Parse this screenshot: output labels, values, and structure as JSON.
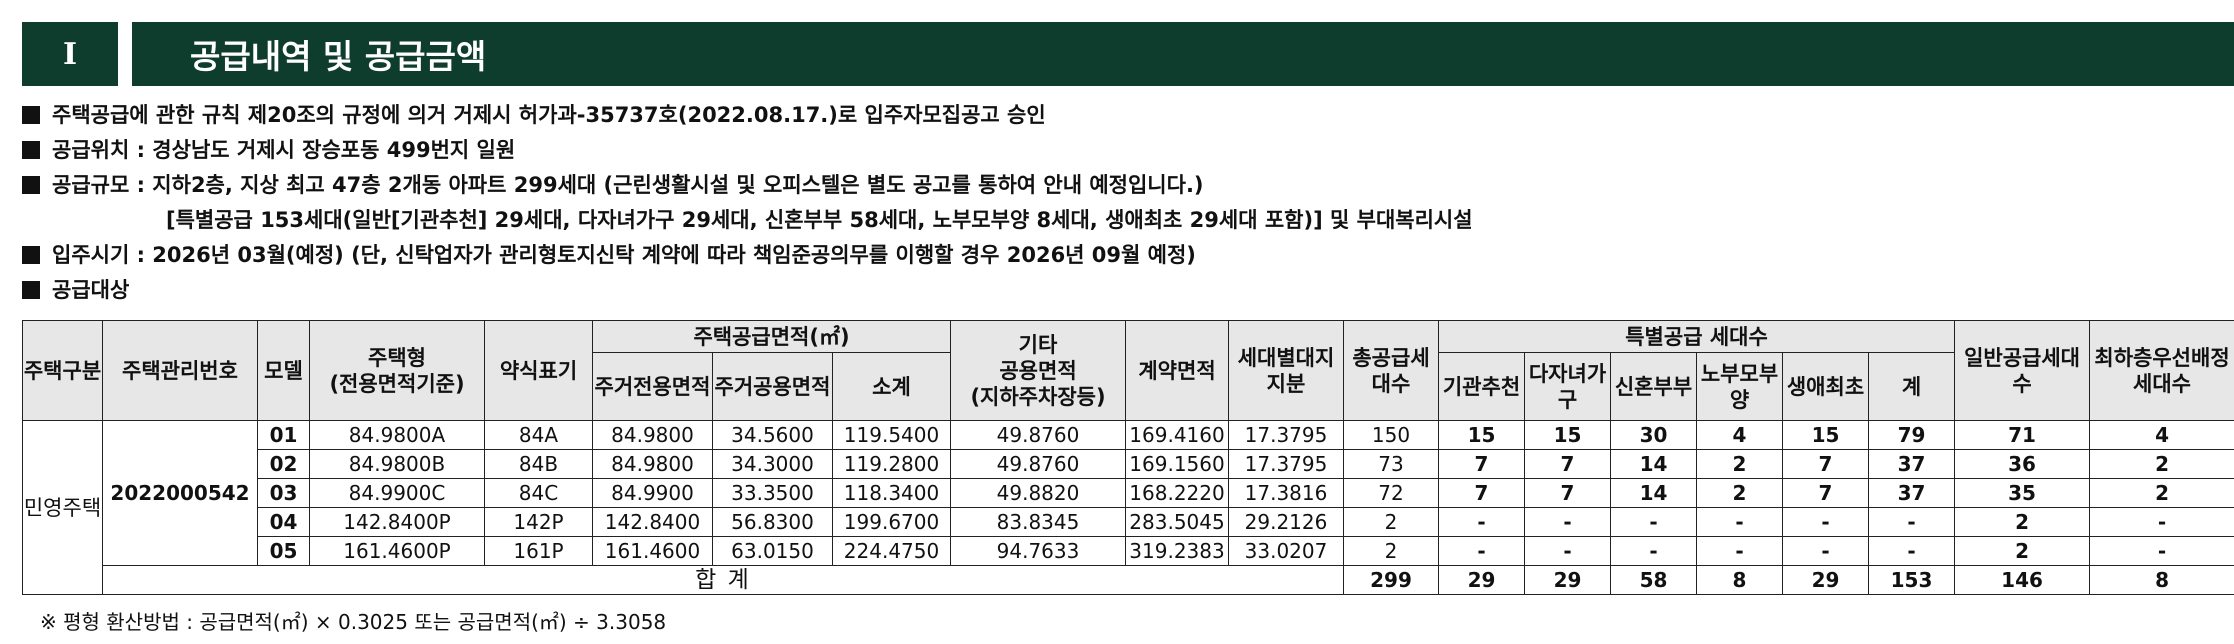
{
  "header": {
    "number": "I",
    "title": "공급내역 및 공급금액"
  },
  "bullets": [
    "주택공급에 관한 규칙 제20조의 규정에 의거 거제시 허가과-35737호(2022.08.17.)로 입주자모집공고 승인",
    "공급위치 : 경상남도 거제시 장승포동 499번지 일원",
    "공급규모 : 지하2층, 지상 최고 47층 2개동 아파트 299세대 (근린생활시설 및 오피스텔은 별도 공고를 통하여 안내 예정입니다.)",
    "[특별공급 153세대(일반[기관추천] 29세대, 다자녀가구 29세대, 신혼부부 58세대, 노부모부양 8세대, 생애최초 29세대 포함)] 및 부대복리시설",
    "입주시기 : 2026년 03월(예정) (단, 신탁업자가 관리형토지신탁 계약에 따라 책임준공의무를 이행할 경우 2026년 09월 예정)",
    "공급대상"
  ],
  "table": {
    "h": {
      "house_type_gubun": "주택구분",
      "mgmt_no": "주택관리번호",
      "model": "모델",
      "house_type": "주택형",
      "house_type_sub": "(전용면적기준)",
      "short": "약식표기",
      "supply_area": "주택공급면적(㎡)",
      "excl_area": "주거전용면적",
      "shared_area": "주거공용면적",
      "subtotal": "소계",
      "other_area": "기타",
      "other_area_2": "공용면적",
      "other_area_sub": "(지하주차장등)",
      "contract_area": "계약면적",
      "land_share": "세대별대지지분",
      "total_units": "총공급세대수",
      "special": "특별공급 세대수",
      "sp_inst": "기관추천",
      "sp_multi": "다자녀가구",
      "sp_newly": "신혼부부",
      "sp_parent": "노부모부양",
      "sp_first": "생애최초",
      "sp_total": "계",
      "general": "일반공급세대수",
      "lowest": "최하층우선배정세대수"
    },
    "house_gubun": "민영주택",
    "mgmt_no": "2022000542",
    "rows": [
      [
        "01",
        "84.9800A",
        "84A",
        "84.9800",
        "34.5600",
        "119.5400",
        "49.8760",
        "169.4160",
        "17.3795",
        "150",
        "15",
        "15",
        "30",
        "4",
        "15",
        "79",
        "71",
        "4"
      ],
      [
        "02",
        "84.9800B",
        "84B",
        "84.9800",
        "34.3000",
        "119.2800",
        "49.8760",
        "169.1560",
        "17.3795",
        "73",
        "7",
        "7",
        "14",
        "2",
        "7",
        "37",
        "36",
        "2"
      ],
      [
        "03",
        "84.9900C",
        "84C",
        "84.9900",
        "33.3500",
        "118.3400",
        "49.8820",
        "168.2220",
        "17.3816",
        "72",
        "7",
        "7",
        "14",
        "2",
        "7",
        "37",
        "35",
        "2"
      ],
      [
        "04",
        "142.8400P",
        "142P",
        "142.8400",
        "56.8300",
        "199.6700",
        "83.8345",
        "283.5045",
        "29.2126",
        "2",
        "-",
        "-",
        "-",
        "-",
        "-",
        "-",
        "2",
        "-"
      ],
      [
        "05",
        "161.4600P",
        "161P",
        "161.4600",
        "63.0150",
        "224.4750",
        "94.7633",
        "319.2383",
        "33.0207",
        "2",
        "-",
        "-",
        "-",
        "-",
        "-",
        "-",
        "2",
        "-"
      ]
    ],
    "sum": {
      "label": "합 계",
      "values": [
        "299",
        "29",
        "29",
        "58",
        "8",
        "29",
        "153",
        "146",
        "8"
      ]
    }
  },
  "note": "※ 평형 환산방법 : 공급면적(㎡) × 0.3025 또는 공급면적(㎡) ÷ 3.3058"
}
